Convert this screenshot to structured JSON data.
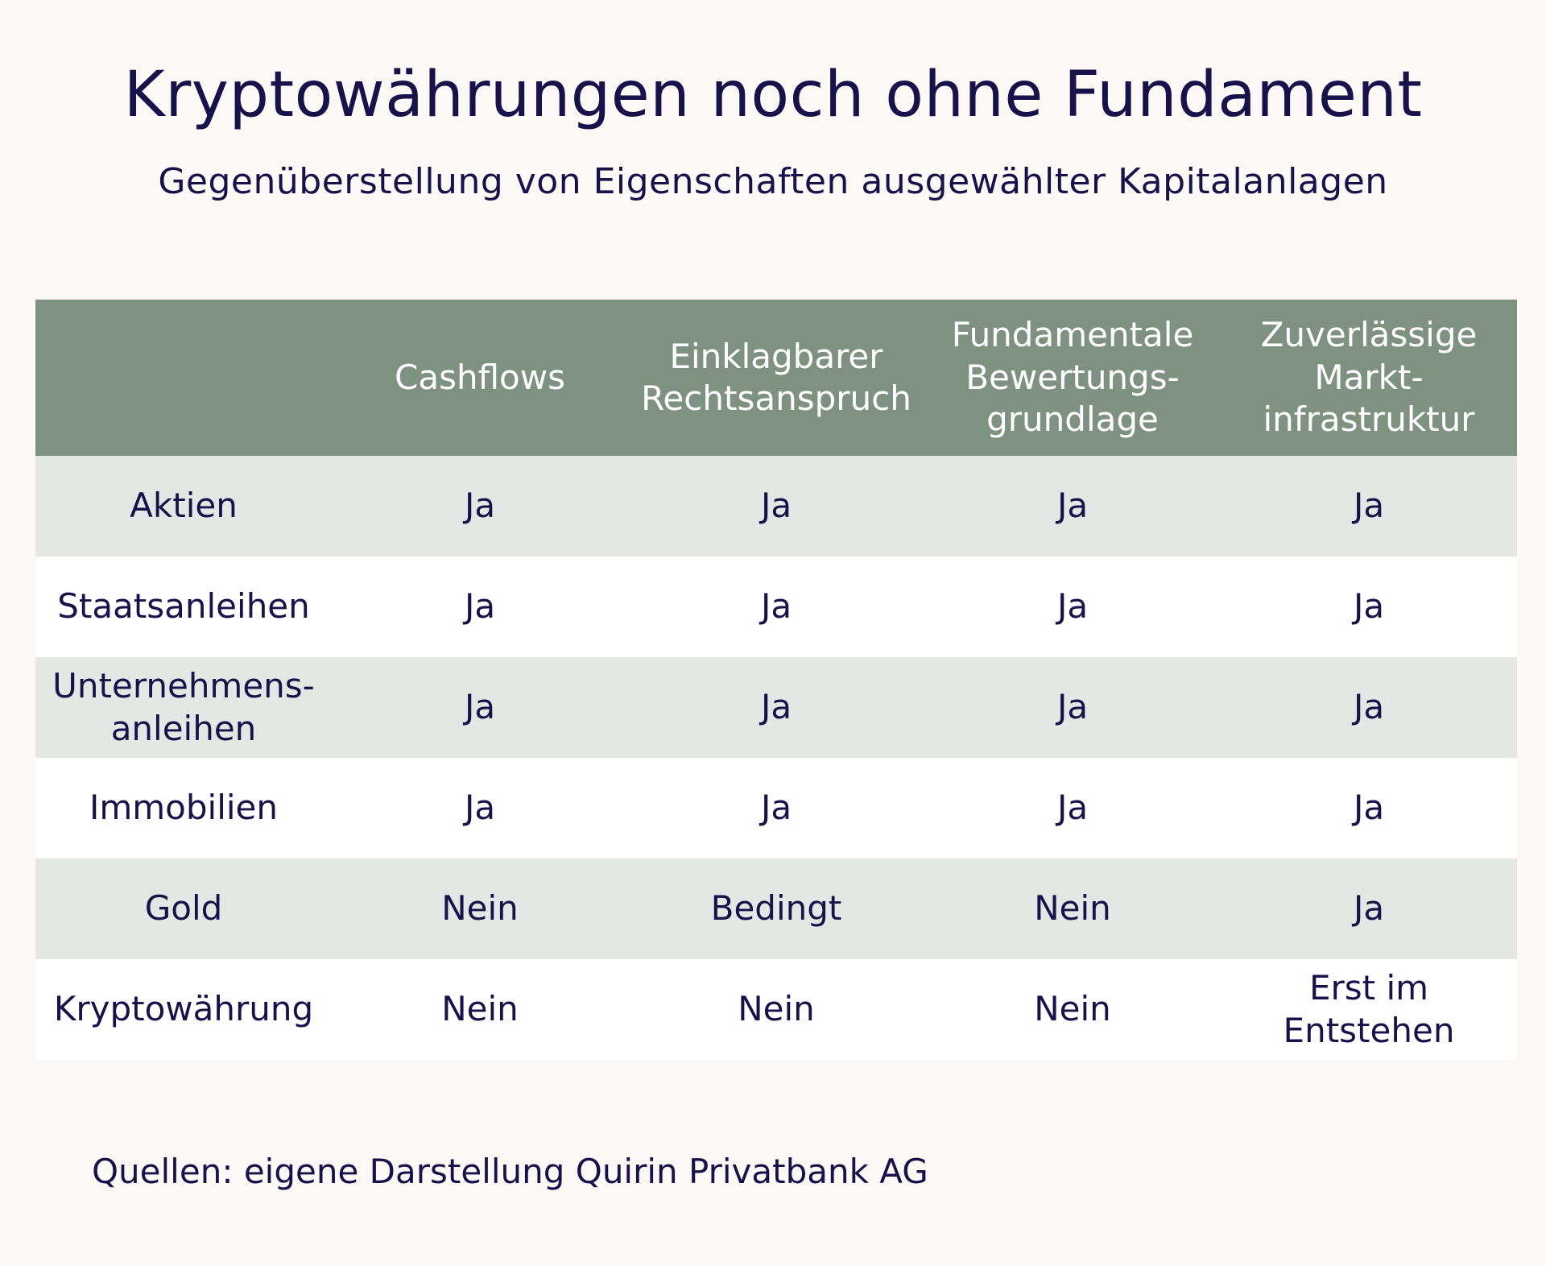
{
  "title": "Kryptowährungen noch ohne Fundament",
  "subtitle": "Gegenüberstellung von Eigenschaften ausgewählter Kapitalanlagen",
  "chart_data": {
    "type": "table",
    "title": "Kryptowährungen noch ohne Fundament",
    "subtitle": "Gegenüberstellung von Eigenschaften ausgewählter Kapitalanlagen",
    "columns": [
      "",
      "Cashflows",
      "Einklagbarer\nRechtsanspruch",
      "Fundamentale\nBewertungs-\ngrundlage",
      "Zuverlässige\nMarkt-\ninfrastruktur"
    ],
    "rows": [
      [
        "Aktien",
        "Ja",
        "Ja",
        "Ja",
        "Ja"
      ],
      [
        "Staatsanleihen",
        "Ja",
        "Ja",
        "Ja",
        "Ja"
      ],
      [
        "Unternehmens-\nanleihen",
        "Ja",
        "Ja",
        "Ja",
        "Ja"
      ],
      [
        "Immobilien",
        "Ja",
        "Ja",
        "Ja",
        "Ja"
      ],
      [
        "Gold",
        "Nein",
        "Bedingt",
        "Nein",
        "Ja"
      ],
      [
        "Kryptowährung",
        "Nein",
        "Nein",
        "Nein",
        "Erst im Entstehen"
      ]
    ]
  },
  "source": "Quellen: eigene Darstellung Quirin Privatbank AG",
  "colors": {
    "header_bg": "#7f9282",
    "row_alt_bg": "#e4e8e4",
    "row_bg": "#ffffff",
    "text": "#17124a",
    "page_bg": "#fcf8f6"
  }
}
